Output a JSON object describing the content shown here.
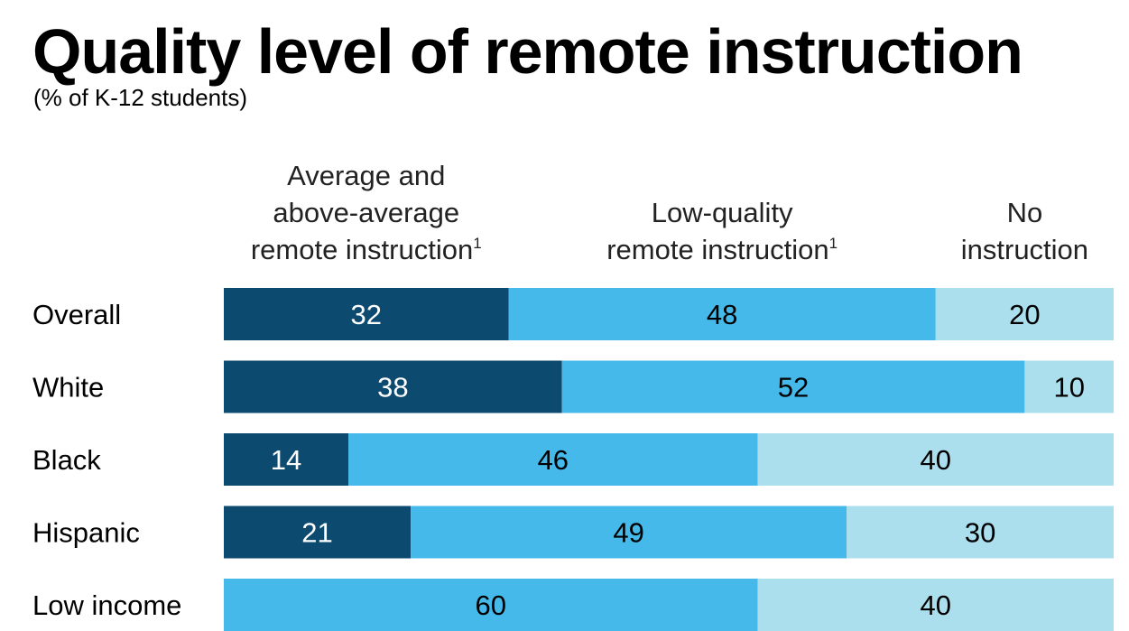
{
  "title": "Quality level of remote instruction",
  "subtitle": "(% of K-12 students)",
  "colors": {
    "average_above": "#0d4a70",
    "low_quality": "#45baea",
    "no_instruction": "#abdfee"
  },
  "chart_data": {
    "type": "bar",
    "orientation": "horizontal",
    "stacked": true,
    "categories": [
      "Overall",
      "White",
      "Black",
      "Hispanic",
      "Low income"
    ],
    "series": [
      {
        "name": "Average and above-average remote instruction",
        "header_lines": [
          "Average and",
          "above-average",
          "remote instruction"
        ],
        "footnote": "1",
        "values": [
          32,
          38,
          14,
          21,
          0
        ]
      },
      {
        "name": "Low-quality remote instruction",
        "header_lines": [
          "Low-quality",
          "remote instruction"
        ],
        "footnote": "1",
        "values": [
          48,
          52,
          46,
          49,
          60
        ]
      },
      {
        "name": "No instruction",
        "header_lines": [
          "No",
          "instruction"
        ],
        "footnote": "",
        "values": [
          20,
          10,
          40,
          30,
          40
        ]
      }
    ],
    "xlim": [
      0,
      100
    ],
    "grid": false,
    "legend": "top column headers"
  }
}
